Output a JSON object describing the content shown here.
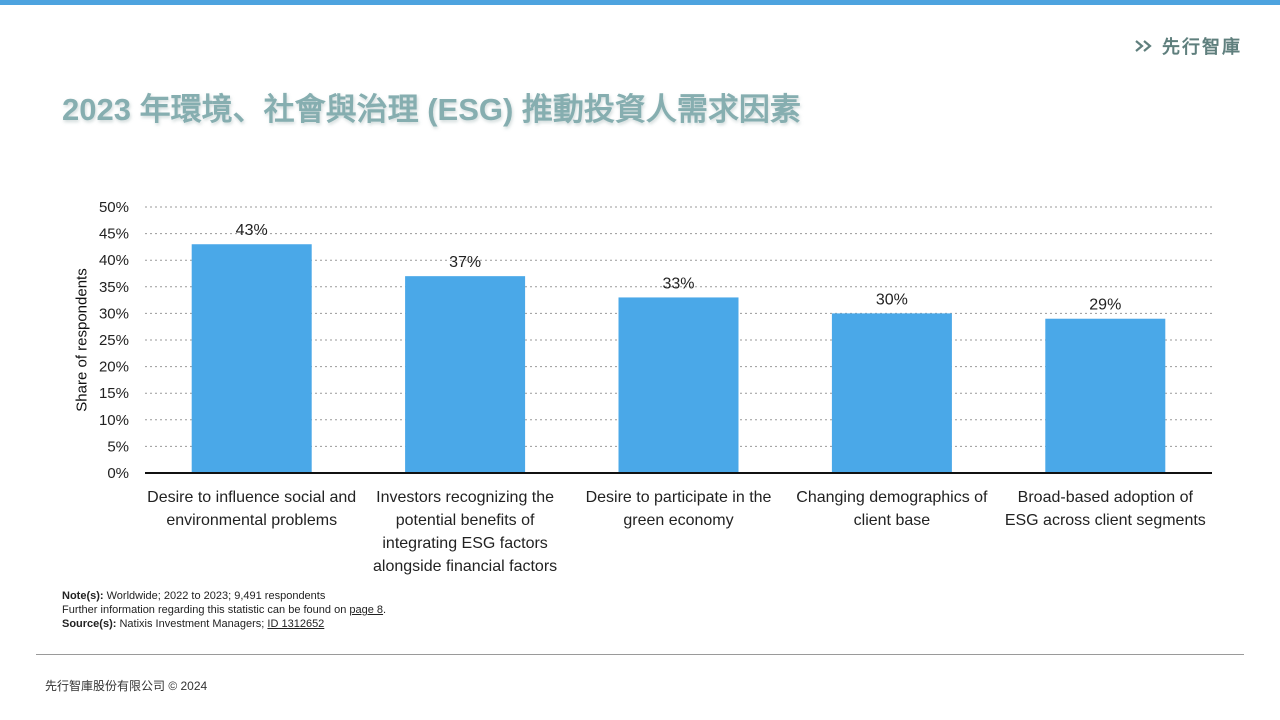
{
  "header": {
    "brand": "先行智庫",
    "title": "2023 年環境、社會與治理 (ESG) 推動投資人需求因素"
  },
  "chart_data": {
    "type": "bar",
    "ylabel": "Share of respondents",
    "ylim": [
      0,
      50
    ],
    "yticks": [
      "0%",
      "5%",
      "10%",
      "15%",
      "20%",
      "25%",
      "30%",
      "35%",
      "40%",
      "45%",
      "50%"
    ],
    "grid": true,
    "bar_color": "#4aa8e8",
    "categories": [
      "Desire to influence social and environmental problems",
      "Investors recognizing the potential benefits of integrating ESG factors alongside financial factors",
      "Desire to participate in the green economy",
      "Changing demographics of client base",
      "Broad-based adoption of ESG across client segments"
    ],
    "values": [
      43,
      37,
      33,
      30,
      29
    ],
    "data_labels": [
      "43%",
      "37%",
      "33%",
      "30%",
      "29%"
    ]
  },
  "notes": {
    "note_label": "Note(s):",
    "note_text": "Worldwide; 2022 to 2023; 9,491 respondents",
    "further_text": "Further information regarding this statistic can be found on",
    "further_link": "page 8",
    "further_end": ".",
    "source_label": "Source(s):",
    "source_text": "Natixis Investment Managers;",
    "source_link": "ID 1312652"
  },
  "footer": {
    "copyright": "先行智庫股份有限公司 © 2024"
  }
}
